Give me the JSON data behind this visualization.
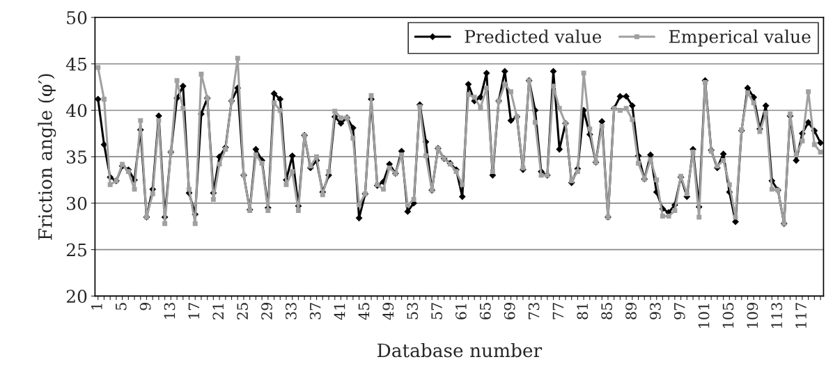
{
  "chart_data": {
    "type": "line",
    "xlabel": "Database number",
    "ylabel": "Friction angle (φ′)",
    "categories": [
      "1",
      null,
      null,
      null,
      "5",
      null,
      null,
      null,
      "9",
      null,
      null,
      null,
      "13",
      null,
      null,
      null,
      "17",
      null,
      null,
      null,
      "21",
      null,
      null,
      null,
      "25",
      null,
      null,
      null,
      "29",
      null,
      null,
      null,
      "33",
      null,
      null,
      null,
      "37",
      null,
      null,
      null,
      "41",
      null,
      null,
      null,
      "45",
      null,
      null,
      null,
      "49",
      null,
      null,
      null,
      "53",
      null,
      null,
      null,
      "57",
      null,
      null,
      null,
      "61",
      null,
      null,
      null,
      "65",
      null,
      null,
      null,
      "69",
      null,
      null,
      null,
      "73",
      null,
      null,
      null,
      "77",
      null,
      null,
      null,
      "81",
      null,
      null,
      null,
      "85",
      null,
      null,
      null,
      "89",
      null,
      null,
      null,
      "93",
      null,
      null,
      null,
      "97",
      null,
      null,
      null,
      "101",
      null,
      null,
      null,
      "105",
      null,
      null,
      null,
      "109",
      null,
      null,
      null,
      "113",
      null,
      null,
      null,
      "117",
      null,
      null,
      null
    ],
    "series": [
      {
        "name": "Predicted value",
        "color": "#000000",
        "marker": "diamond",
        "values": [
          41.2,
          36.3,
          32.8,
          32.4,
          34.0,
          33.6,
          32.5,
          37.9,
          28.5,
          31.5,
          39.4,
          28.5,
          35.5,
          41.3,
          42.6,
          31.1,
          28.8,
          39.6,
          41.3,
          31.1,
          35.0,
          36.0,
          41.0,
          42.4,
          33.0,
          29.3,
          35.8,
          34.6,
          29.5,
          41.8,
          41.2,
          32.5,
          35.1,
          29.7,
          37.3,
          33.8,
          34.6,
          31.2,
          33.0,
          39.3,
          38.6,
          39.2,
          38.1,
          28.4,
          31.0,
          41.2,
          31.9,
          32.3,
          34.2,
          33.2,
          35.6,
          29.1,
          30.0,
          40.6,
          36.6,
          31.4,
          35.9,
          34.8,
          34.3,
          33.6,
          30.7,
          42.8,
          41.0,
          41.4,
          44.0,
          33.0,
          41.0,
          44.2,
          38.9,
          39.3,
          33.6,
          43.2,
          40.0,
          33.4,
          33.0,
          44.2,
          35.8,
          38.6,
          32.2,
          33.7,
          40.0,
          37.4,
          34.4,
          38.8,
          28.5,
          40.2,
          41.5,
          41.5,
          40.5,
          35.1,
          32.6,
          35.2,
          31.2,
          29.4,
          29.0,
          29.8,
          32.8,
          30.7,
          35.8,
          29.6,
          43.2,
          35.7,
          33.8,
          35.3,
          31.2,
          28.0,
          37.8,
          42.4,
          41.4,
          38.0,
          40.5,
          32.4,
          31.4,
          27.8,
          39.4,
          34.6,
          37.5,
          38.7,
          37.8,
          36.5
        ]
      },
      {
        "name": "Emperical value",
        "color": "#a0a0a0",
        "marker": "square",
        "values": [
          44.6,
          41.2,
          32.0,
          32.4,
          34.2,
          33.4,
          31.5,
          38.9,
          28.5,
          31.0,
          38.9,
          27.8,
          35.5,
          43.2,
          40.2,
          31.5,
          27.8,
          43.9,
          41.3,
          30.4,
          34.2,
          35.8,
          41.0,
          45.6,
          33.0,
          29.2,
          35.2,
          34.3,
          29.2,
          40.8,
          40.0,
          32.0,
          33.4,
          29.2,
          37.3,
          34.0,
          35.0,
          30.9,
          33.4,
          39.9,
          39.2,
          39.2,
          37.0,
          29.8,
          31.0,
          41.6,
          32.0,
          31.5,
          33.8,
          33.2,
          35.2,
          29.8,
          30.4,
          40.4,
          35.1,
          31.4,
          35.9,
          34.8,
          34.2,
          33.4,
          32.0,
          41.7,
          41.4,
          40.3,
          42.4,
          33.4,
          41.0,
          42.8,
          42.0,
          39.3,
          33.8,
          43.2,
          38.7,
          33.0,
          33.0,
          42.6,
          40.2,
          38.6,
          32.4,
          33.4,
          44.0,
          38.0,
          34.4,
          38.3,
          28.5,
          40.2,
          40.0,
          40.2,
          39.0,
          34.3,
          32.6,
          34.7,
          32.5,
          28.6,
          28.6,
          29.2,
          32.9,
          31.0,
          35.5,
          28.5,
          43.0,
          35.6,
          34.0,
          34.6,
          32.0,
          28.5,
          37.9,
          41.9,
          40.8,
          37.7,
          39.7,
          31.5,
          31.4,
          27.8,
          39.6,
          35.2,
          36.7,
          42.0,
          36.3,
          35.5
        ]
      }
    ],
    "ylim": [
      20,
      50
    ],
    "yticks": [
      20,
      25,
      30,
      35,
      40,
      45,
      50
    ],
    "grid": "y",
    "legend": "top right",
    "line_style": "solid"
  }
}
